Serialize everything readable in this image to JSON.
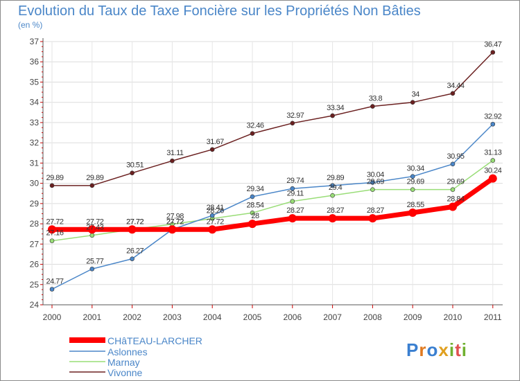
{
  "title": "Evolution du Taux de Taxe Foncière sur les Propriétés Non Bâties",
  "unit": "(en %)",
  "chart_data": {
    "type": "line",
    "title": "Evolution du Taux de Taxe Foncière sur les Propriétés Non Bâties",
    "ylabel": "(en %)",
    "xlabel": "",
    "ylim": [
      24,
      37
    ],
    "x": [
      "2000",
      "2001",
      "2002",
      "2003",
      "2004",
      "2005",
      "2006",
      "2007",
      "2008",
      "2009",
      "2010",
      "2011"
    ],
    "yticks": [
      24,
      25,
      26,
      27,
      28,
      29,
      30,
      31,
      32,
      33,
      34,
      35,
      36,
      37
    ],
    "grid": true,
    "series": [
      {
        "name": "CHâTEAU-LARCHER",
        "color": "#ff0000",
        "values": [
          27.72,
          27.72,
          27.72,
          27.72,
          27.72,
          28,
          28.27,
          28.27,
          28.27,
          28.55,
          28.84,
          30.24
        ],
        "labels": [
          "27.72",
          "27.72",
          "27.72",
          "27.72",
          "27.72",
          "28",
          "28.27",
          "28.27",
          "28.27",
          "28.55",
          "28.84",
          "30.24"
        ]
      },
      {
        "name": "Aslonnes",
        "color": "#4a86c8",
        "values": [
          24.77,
          25.77,
          26.27,
          27.72,
          28.41,
          29.34,
          29.74,
          29.89,
          30.04,
          30.34,
          30.95,
          32.92
        ],
        "labels": [
          "24.77",
          "25.77",
          "26.27",
          "27.72",
          "28.41",
          "29.34",
          "29.74",
          "29.89",
          "30.04",
          "30.34",
          "30.95",
          "32.92"
        ]
      },
      {
        "name": "Marnay",
        "color": "#99dd77",
        "values": [
          27.16,
          27.43,
          27.72,
          27.98,
          28.26,
          28.54,
          29.11,
          29.4,
          29.69,
          29.69,
          29.69,
          31.13
        ],
        "labels": [
          "27.16",
          "27.43",
          "27.72",
          "27.98",
          "28.26",
          "28.54",
          "29.11",
          "29.4",
          "29.69",
          "29.69",
          "29.69",
          "31.13"
        ]
      },
      {
        "name": "Vivonne",
        "color": "#6b2020",
        "values": [
          29.89,
          29.89,
          30.51,
          31.11,
          31.67,
          32.46,
          32.97,
          33.34,
          33.8,
          34,
          34.44,
          36.47
        ],
        "labels": [
          "29.89",
          "29.89",
          "30.51",
          "31.11",
          "31.67",
          "32.46",
          "32.97",
          "33.34",
          "33.8",
          "34",
          "34.44",
          "36.47"
        ]
      }
    ]
  },
  "legend": [
    "CHâTEAU-LARCHER",
    "Aslonnes",
    "Marnay",
    "Vivonne"
  ],
  "logo": {
    "letters": [
      "P",
      "r",
      "o",
      "x",
      "i",
      "t",
      "i"
    ],
    "colors": [
      "#3a7fd0",
      "#e07a20",
      "#3a7fd0",
      "#e0a020",
      "#70b030",
      "#e05050",
      "#70b030"
    ]
  }
}
